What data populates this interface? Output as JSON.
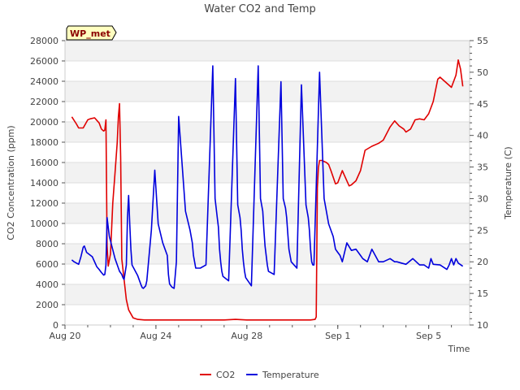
{
  "chart_data": {
    "type": "line",
    "title": "Water CO2 and Temp",
    "badge": "WP_met",
    "xlabel": "Time",
    "ylabel_left": "CO2 Concentration (ppm)",
    "ylabel_right": "Temperature (C)",
    "x_ticks": [
      {
        "day": 0,
        "label": "Aug 20"
      },
      {
        "day": 4,
        "label": "Aug 24"
      },
      {
        "day": 8,
        "label": "Aug 28"
      },
      {
        "day": 12,
        "label": "Sep 1"
      },
      {
        "day": 16,
        "label": "Sep 5"
      }
    ],
    "xlim": [
      0,
      17.8
    ],
    "ylim_left": [
      0,
      28000
    ],
    "ylim_right": [
      10,
      55
    ],
    "y_left_ticks": [
      0,
      2000,
      4000,
      6000,
      8000,
      10000,
      12000,
      14000,
      16000,
      18000,
      20000,
      22000,
      24000,
      26000,
      28000
    ],
    "y_right_ticks": [
      10,
      15,
      20,
      25,
      30,
      35,
      40,
      45,
      50,
      55
    ],
    "grid": true,
    "legend_position": "bottom-center",
    "series": [
      {
        "name": "CO2",
        "axis": "left",
        "color": "#e00000",
        "x": [
          0.3,
          0.5,
          0.6,
          0.8,
          1.0,
          1.1,
          1.3,
          1.5,
          1.6,
          1.7,
          1.75,
          1.8,
          1.85,
          1.9,
          2.0,
          2.1,
          2.2,
          2.3,
          2.35,
          2.4,
          2.45,
          2.5,
          2.6,
          2.7,
          2.8,
          3.0,
          3.2,
          3.5,
          4.0,
          4.5,
          5.0,
          6.0,
          7.0,
          7.5,
          8.0,
          9.0,
          10.0,
          10.5,
          10.8,
          11.0,
          11.05,
          11.1,
          11.15,
          11.2,
          11.3,
          11.5,
          11.6,
          11.7,
          11.9,
          12.0,
          12.2,
          12.3,
          12.5,
          12.6,
          12.7,
          12.8,
          13.0,
          13.2,
          13.5,
          13.8,
          14.0,
          14.3,
          14.5,
          14.7,
          14.9,
          15.0,
          15.2,
          15.4,
          15.6,
          15.8,
          16.0,
          16.2,
          16.4,
          16.5,
          16.7,
          17.0,
          17.2,
          17.3,
          17.4,
          17.5
        ],
        "y": [
          20500,
          19800,
          19400,
          19400,
          20200,
          20300,
          20400,
          19900,
          19300,
          19100,
          19200,
          20200,
          7800,
          5800,
          7000,
          12000,
          15000,
          18000,
          20500,
          21800,
          16500,
          6500,
          4500,
          2500,
          1500,
          700,
          550,
          500,
          500,
          500,
          500,
          500,
          500,
          550,
          500,
          500,
          500,
          500,
          500,
          550,
          800,
          13500,
          15500,
          16200,
          16200,
          16000,
          15800,
          15200,
          13900,
          14000,
          15200,
          14700,
          13700,
          13800,
          14000,
          14200,
          15200,
          17200,
          17600,
          17900,
          18200,
          19500,
          20100,
          19600,
          19300,
          19000,
          19300,
          20200,
          20300,
          20200,
          20800,
          22000,
          24200,
          24400,
          24000,
          23400,
          24600,
          26100,
          25200,
          23500
        ]
      },
      {
        "name": "Temperature",
        "axis": "right",
        "color": "#0000dd",
        "x": [
          0.3,
          0.4,
          0.6,
          0.7,
          0.8,
          0.85,
          0.95,
          1.2,
          1.4,
          1.5,
          1.6,
          1.7,
          1.75,
          1.8,
          1.85,
          1.95,
          2.2,
          2.4,
          2.5,
          2.55,
          2.6,
          2.7,
          2.75,
          2.8,
          2.85,
          2.9,
          2.95,
          3.2,
          3.35,
          3.4,
          3.45,
          3.5,
          3.55,
          3.6,
          3.8,
          3.95,
          4.1,
          4.3,
          4.4,
          4.5,
          4.55,
          4.6,
          4.7,
          4.8,
          4.9,
          5.0,
          5.3,
          5.5,
          5.6,
          5.65,
          5.7,
          5.75,
          5.85,
          5.95,
          6.2,
          6.5,
          6.6,
          6.7,
          6.75,
          6.8,
          6.85,
          6.9,
          6.95,
          7.2,
          7.5,
          7.6,
          7.7,
          7.75,
          7.8,
          7.85,
          7.9,
          7.95,
          8.2,
          8.5,
          8.6,
          8.7,
          8.75,
          8.8,
          8.85,
          8.9,
          8.95,
          9.2,
          9.5,
          9.6,
          9.7,
          9.75,
          9.8,
          9.85,
          9.9,
          9.95,
          10.2,
          10.4,
          10.6,
          10.7,
          10.75,
          10.8,
          10.85,
          10.9,
          10.95,
          11.2,
          11.4,
          11.6,
          11.8,
          11.9,
          12.0,
          12.1,
          12.2,
          12.4,
          12.6,
          12.8,
          13.0,
          13.1,
          13.3,
          13.5,
          13.8,
          14.0,
          14.3,
          14.5,
          14.6,
          14.8,
          15.0,
          15.3,
          15.6,
          15.8,
          16.0,
          16.1,
          16.2,
          16.5,
          16.8,
          16.9,
          17.0,
          17.1,
          17.2,
          17.3,
          17.5
        ],
        "y": [
          20.3,
          20.0,
          19.6,
          20.8,
          22.3,
          22.5,
          21.5,
          20.8,
          19.2,
          18.8,
          18.3,
          17.9,
          18.0,
          19.5,
          27.0,
          24.0,
          20.5,
          18.5,
          18.0,
          17.5,
          17.2,
          19.5,
          27.0,
          30.5,
          26.0,
          22.0,
          19.5,
          17.8,
          16.3,
          15.9,
          15.8,
          16.0,
          16.2,
          17.0,
          25.0,
          34.5,
          26.0,
          23.0,
          22.0,
          21.0,
          18.0,
          16.5,
          16.0,
          15.8,
          20.0,
          43.0,
          28.0,
          25.0,
          23.0,
          21.0,
          20.0,
          19.0,
          19.0,
          19.0,
          19.5,
          51.0,
          30.0,
          27.0,
          25.5,
          22.0,
          20.0,
          18.5,
          17.7,
          17.0,
          49.0,
          29.0,
          27.0,
          25.0,
          22.0,
          20.0,
          18.5,
          17.5,
          16.2,
          51.0,
          30.0,
          28.0,
          25.0,
          22.5,
          21.0,
          19.5,
          18.5,
          18.0,
          48.5,
          30.0,
          28.5,
          27.0,
          24.5,
          22.0,
          21.0,
          20.0,
          19.0,
          48.0,
          29.0,
          27.0,
          25.0,
          22.0,
          20.0,
          19.5,
          19.5,
          50.0,
          30.0,
          26.0,
          24.0,
          22.0,
          21.5,
          21.0,
          20.0,
          23.0,
          21.8,
          22.0,
          21.0,
          20.5,
          20.0,
          22.0,
          20.0,
          20.0,
          20.5,
          20.0,
          20.0,
          19.8,
          19.6,
          20.5,
          19.5,
          19.5,
          19.0,
          20.5,
          19.6,
          19.5,
          18.8,
          19.5,
          20.5,
          19.5,
          20.5,
          19.8,
          19.3
        ]
      }
    ]
  }
}
